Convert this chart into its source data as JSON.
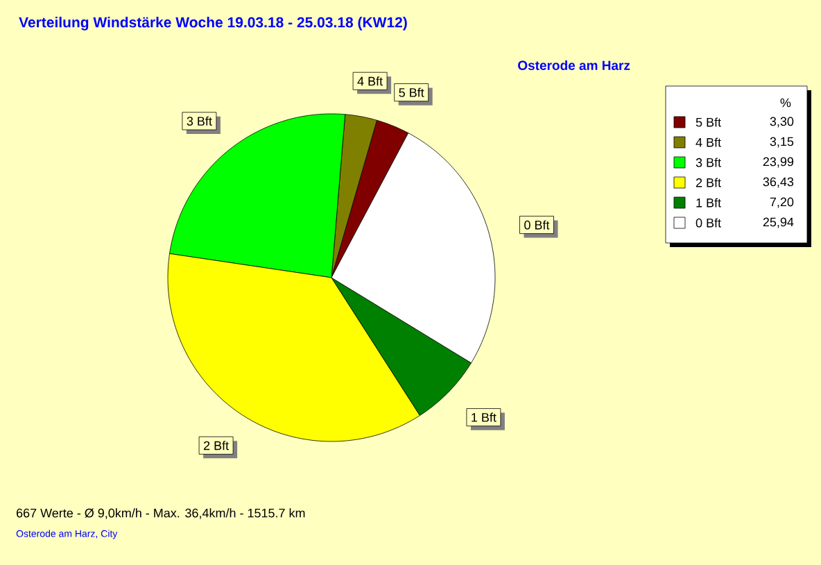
{
  "chart_data": {
    "type": "pie",
    "title": "Verteilung Windstärke  Woche 19.03.18 - 25.03.18 (KW12)",
    "subtitle": "Osterode am Harz",
    "categories": [
      "5 Bft",
      "4 Bft",
      "3 Bft",
      "2 Bft",
      "1 Bft",
      "0 Bft"
    ],
    "values": [
      3.3,
      3.15,
      23.99,
      36.43,
      7.2,
      25.94
    ],
    "value_labels": [
      "3,30",
      "3,15",
      "23,99",
      "36,43",
      "7,20",
      "25,94"
    ],
    "colors": [
      "#800000",
      "#808000",
      "#00ff00",
      "#ffff00",
      "#008000",
      "#ffffff"
    ],
    "legend": "top right",
    "legend_title": "%",
    "annotations": [
      "667 Werte   -   Ø 9,0km/h  -  Max. 36,4km/h   -   1515.7 km",
      "Osterode am Harz, City"
    ]
  }
}
